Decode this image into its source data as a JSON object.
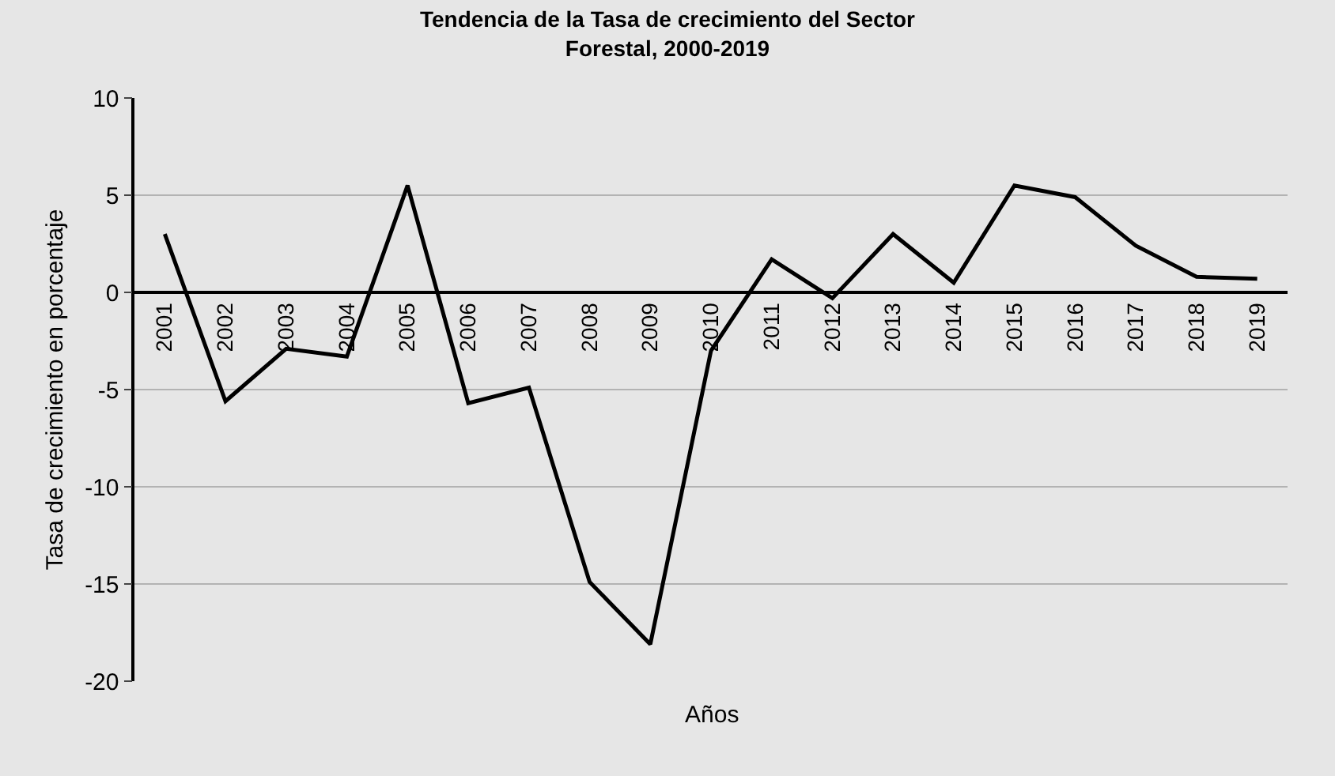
{
  "chart_data": {
    "type": "line",
    "title": "Tendencia de la Tasa de crecimiento del Sector\nForestal, 2000-2019",
    "xlabel": "Años",
    "ylabel": "Tasa de crecimiento en porcentaje",
    "categories": [
      "2001",
      "2002",
      "2003",
      "2004",
      "2005",
      "2006",
      "2007",
      "2008",
      "2009",
      "2010",
      "2011",
      "2012",
      "2013",
      "2014",
      "2015",
      "2016",
      "2017",
      "2018",
      "2019"
    ],
    "series": [
      {
        "color": "#000000",
        "values": [
          3.0,
          -5.6,
          -2.9,
          -3.3,
          5.5,
          -5.7,
          -4.9,
          -14.9,
          -18.1,
          -3.0,
          1.7,
          -0.3,
          3.0,
          0.5,
          5.5,
          4.9,
          2.4,
          0.8,
          0.7
        ]
      }
    ],
    "ylim": [
      -20,
      10
    ],
    "yticks": [
      -20,
      -15,
      -10,
      -5,
      0,
      5,
      10
    ],
    "grid": "y",
    "marker": "none",
    "line_style": "solid"
  }
}
